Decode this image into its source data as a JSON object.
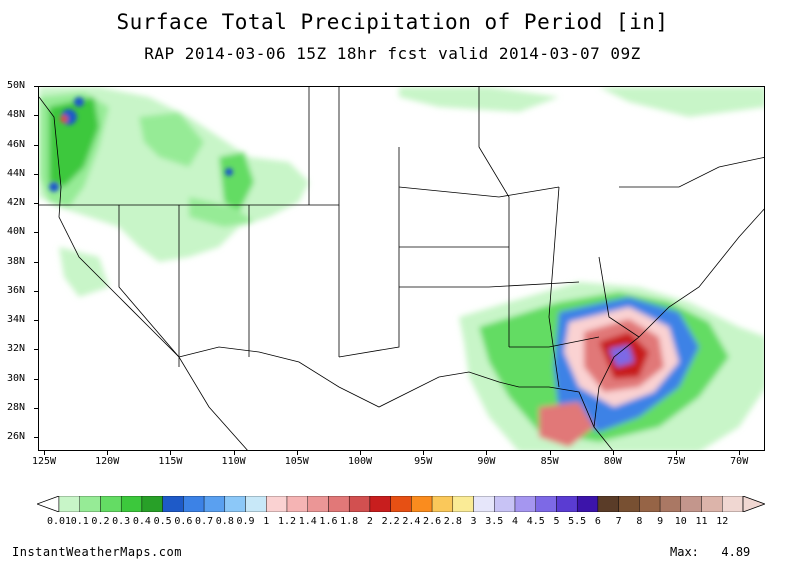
{
  "title": "Surface Total Precipitation of Period [in]",
  "subtitle": "RAP 2014-03-06 15Z 18hr fcst valid 2014-03-07 09Z",
  "lat_labels": [
    "50N",
    "48N",
    "46N",
    "44N",
    "42N",
    "40N",
    "38N",
    "36N",
    "34N",
    "32N",
    "30N",
    "28N",
    "26N"
  ],
  "lon_labels": [
    "125W",
    "120W",
    "115W",
    "110W",
    "105W",
    "100W",
    "95W",
    "90W",
    "85W",
    "80W",
    "75W",
    "70W"
  ],
  "colorbar": {
    "labels": [
      "0.01",
      "0.1",
      "0.2",
      "0.3",
      "0.4",
      "0.5",
      "0.6",
      "0.7",
      "0.8",
      "0.9",
      "1",
      "1.2",
      "1.4",
      "1.6",
      "1.8",
      "2",
      "2.2",
      "2.4",
      "2.6",
      "2.8",
      "3",
      "3.5",
      "4",
      "4.5",
      "5",
      "5.5",
      "6",
      "7",
      "8",
      "9",
      "10",
      "11",
      "12"
    ],
    "colors": [
      "#c8f5c8",
      "#96eb96",
      "#64dc64",
      "#3cc83c",
      "#28a028",
      "#1e5ac8",
      "#3c82e6",
      "#5aa0f0",
      "#8cc8f8",
      "#c8e8f8",
      "#fad2d2",
      "#f5b4b4",
      "#eb9696",
      "#e17878",
      "#d25050",
      "#c81e1e",
      "#e65014",
      "#fa8c1e",
      "#fac85a",
      "#faeb96",
      "#e6e6fa",
      "#c8c3f5",
      "#a596f0",
      "#7d69e6",
      "#5a3cd2",
      "#3c14aa",
      "#5a3c28",
      "#785032",
      "#966446",
      "#aa7864",
      "#c3968c",
      "#dcb4aa",
      "#f0d7d2"
    ]
  },
  "footer": {
    "site": "InstantWeatherMaps.com",
    "max_label": "Max:",
    "max_value": "4.89"
  }
}
